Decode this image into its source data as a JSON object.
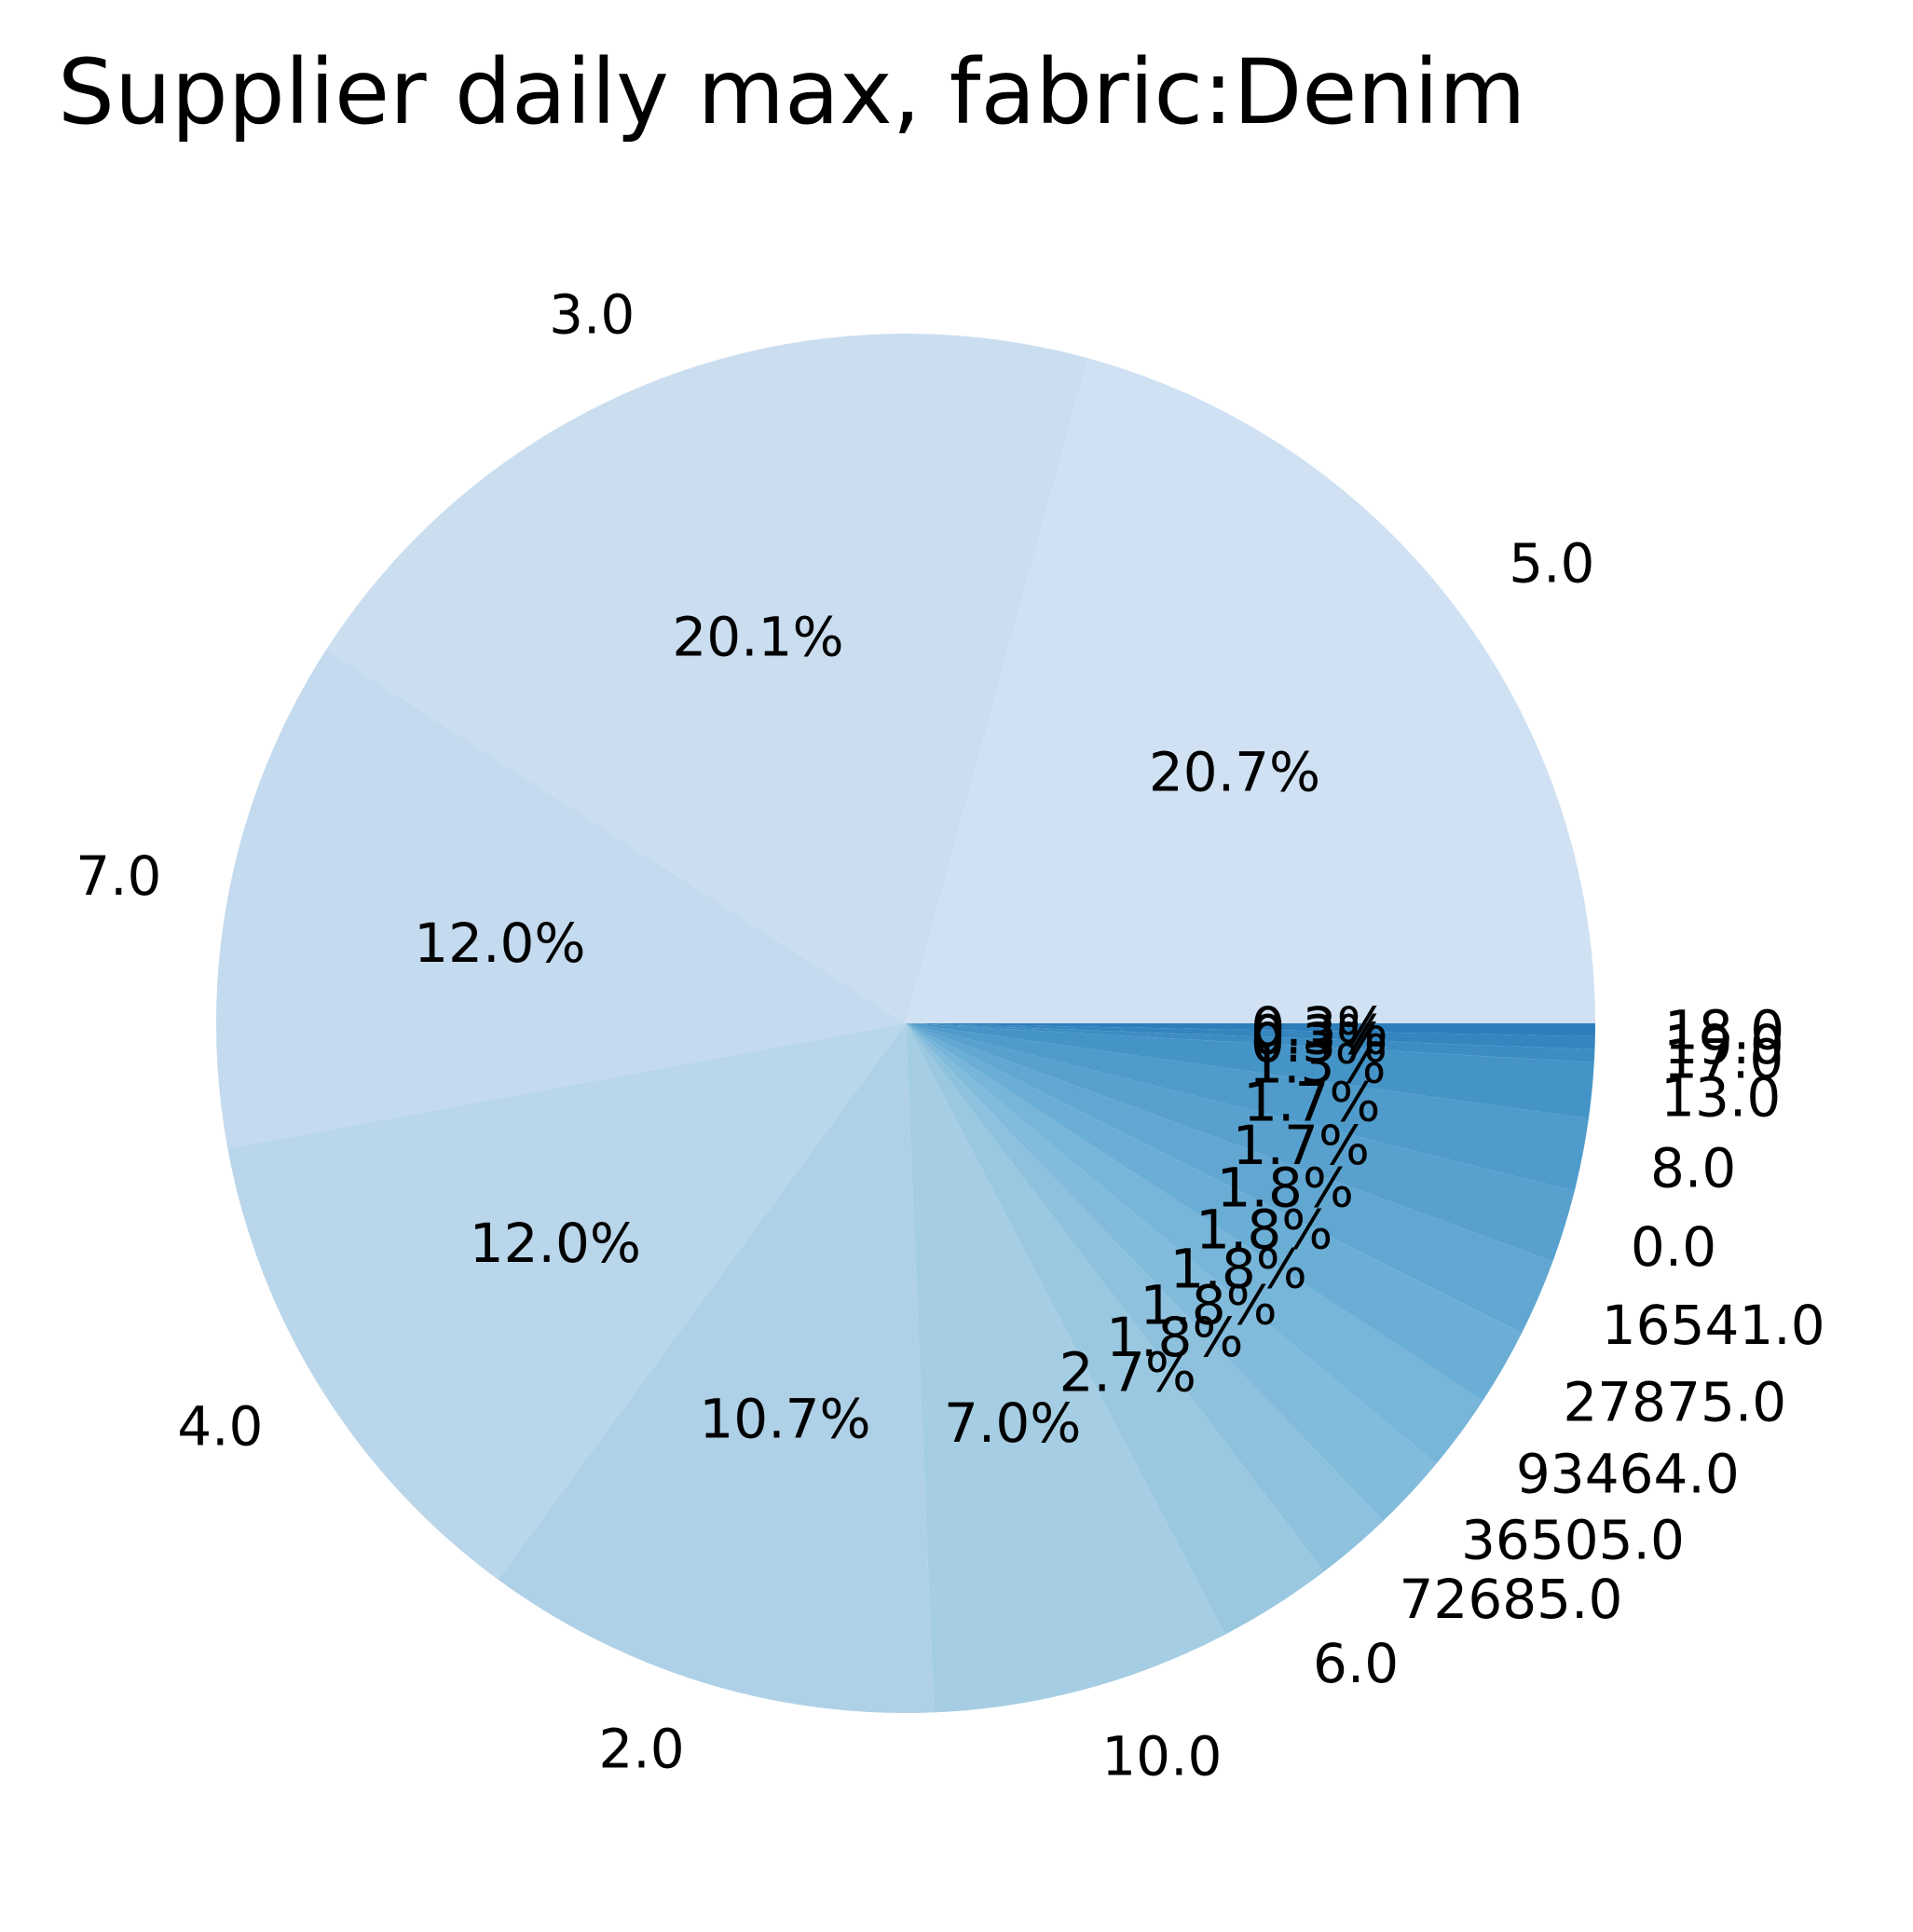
{
  "chart_data": {
    "type": "pie",
    "title": "Supplier daily max, fabric:Denim",
    "start_angle_deg": 0,
    "direction": "counterclockwise",
    "slices": [
      {
        "label": "5.0",
        "percent": 20.7,
        "pct_text": "20.7%",
        "color": "#cfe1f2"
      },
      {
        "label": "3.0",
        "percent": 20.1,
        "pct_text": "20.1%",
        "color": "#cbdef0"
      },
      {
        "label": "7.0",
        "percent": 12.0,
        "pct_text": "12.0%",
        "color": "#c4daee"
      },
      {
        "label": "4.0",
        "percent": 12.0,
        "pct_text": "12.0%",
        "color": "#b9d6ea"
      },
      {
        "label": "2.0",
        "percent": 10.7,
        "pct_text": "10.7%",
        "color": "#afd1e7"
      },
      {
        "label": "10.0",
        "percent": 7.0,
        "pct_text": "7.0%",
        "color": "#a5cde3"
      },
      {
        "label": "6.0",
        "percent": 2.7,
        "pct_text": "2.7%",
        "color": "#9ac8e0"
      },
      {
        "label": "72685.0",
        "percent": 1.8,
        "pct_text": "1.8%",
        "color": "#8ec1de"
      },
      {
        "label": "36505.0",
        "percent": 1.8,
        "pct_text": "1.8%",
        "color": "#82bbdb"
      },
      {
        "label": "93464.0",
        "percent": 1.8,
        "pct_text": "1.8%",
        "color": "#77b5d9"
      },
      {
        "label": "27875.0",
        "percent": 1.8,
        "pct_text": "1.8%",
        "color": "#6aaed6"
      },
      {
        "label": "16541.0",
        "percent": 1.8,
        "pct_text": "1.8%",
        "color": "#61a7d2"
      },
      {
        "label": "0.0",
        "percent": 1.7,
        "pct_text": "1.7%",
        "color": "#58a1cf"
      },
      {
        "label": "8.0",
        "percent": 1.7,
        "pct_text": "1.7%",
        "color": "#4f9bcb"
      },
      {
        "label": "13.0",
        "percent": 1.3,
        "pct_text": "1.3%",
        "color": "#4594c7"
      },
      {
        "label": "17.0",
        "percent": 0.3,
        "pct_text": "0.3%",
        "color": "#3d8dc4"
      },
      {
        "label": "19.0",
        "percent": 0.3,
        "pct_text": "0.3%",
        "color": "#3585bf"
      },
      {
        "label": "18.0",
        "percent": 0.3,
        "pct_text": "0.3%",
        "color": "#2e7ebc"
      }
    ]
  }
}
